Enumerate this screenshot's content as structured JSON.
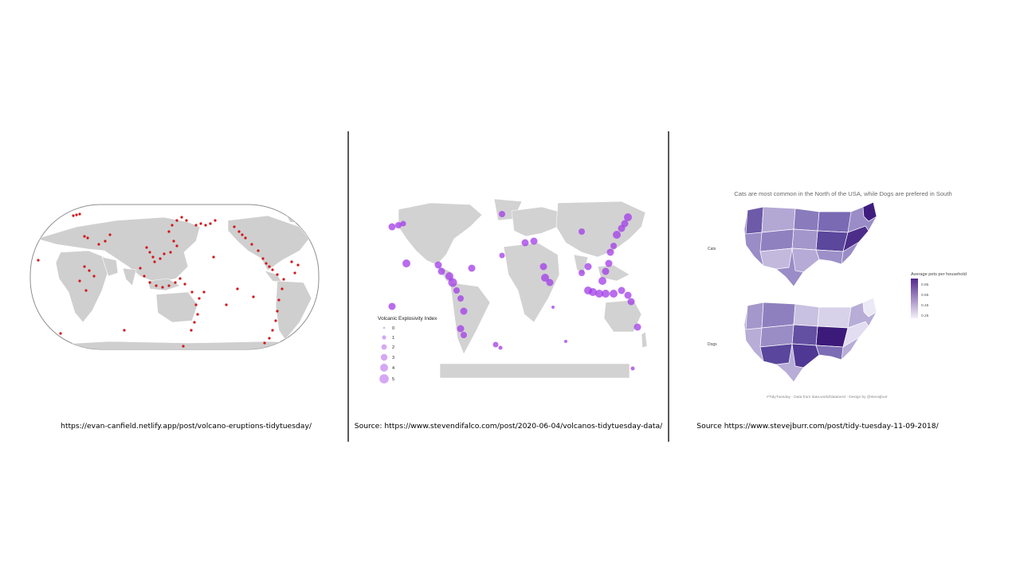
{
  "slide": {
    "panels": [
      {
        "id": "panel-1",
        "caption": "https://evan-canfield.netlify.app/post/volcano-eruptions-tidytuesday/",
        "marker_color": "#d0161b"
      },
      {
        "id": "panel-2",
        "caption": "Source: https://www.stevendifalco.com/post/2020-06-04/volcanos-tidytuesday-data/",
        "marker_color": "#a23be8",
        "legend": {
          "title": "Volcanic Explosivity Index",
          "items": [
            "0",
            "1",
            "2",
            "3",
            "4",
            "5"
          ]
        }
      },
      {
        "id": "panel-3",
        "caption": "Source https://www.stevejburr.com/post/tidy-tuesday-11-09-2018/",
        "title": "Cats are most common in the North of the USA, while Dogs are prefered in South",
        "facets": [
          "Cats",
          "Dogs"
        ],
        "legend": {
          "title": "Average pets per household",
          "ticks": [
            "0.85",
            "0.65",
            "0.45",
            "0.25"
          ]
        },
        "footer": "#TidyTuesday - Data from data.world/datanerd - Design by @stevejburr",
        "colors": {
          "low": "#ece9f6",
          "high": "#54278f"
        }
      }
    ]
  }
}
